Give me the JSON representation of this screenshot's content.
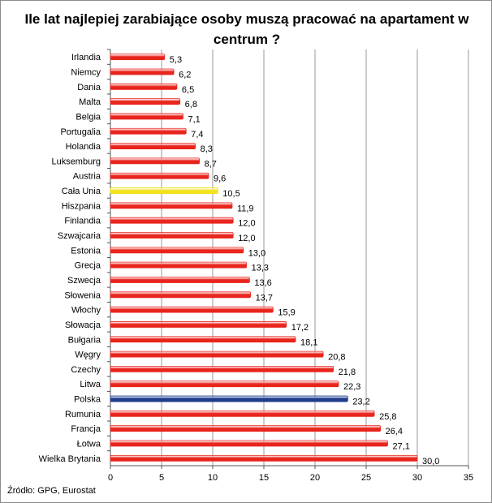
{
  "chart_data": {
    "type": "bar",
    "orientation": "horizontal",
    "title": "Ile lat najlepiej zarabiające osoby muszą pracować na apartament w centrum ?",
    "source_note": "Źródło: GPG, Eurostat",
    "categories": [
      "Irlandia",
      "Niemcy",
      "Dania",
      "Malta",
      "Belgia",
      "Portugalia",
      "Holandia",
      "Luksemburg",
      "Austria",
      "Cała Unia",
      "Hiszpania",
      "Finlandia",
      "Szwajcaria",
      "Estonia",
      "Grecja",
      "Szwecja",
      "Słowenia",
      "Włochy",
      "Słowacja",
      "Bułgaria",
      "Węgry",
      "Czechy",
      "Litwa",
      "Polska",
      "Rumunia",
      "Francja",
      "Łotwa",
      "Wielka Brytania"
    ],
    "values": [
      5.3,
      6.2,
      6.5,
      6.8,
      7.1,
      7.4,
      8.3,
      8.7,
      9.6,
      10.5,
      11.9,
      12.0,
      12.0,
      13.0,
      13.3,
      13.6,
      13.7,
      15.9,
      17.2,
      18.1,
      20.8,
      21.8,
      22.3,
      23.2,
      25.8,
      26.4,
      27.1,
      30.0
    ],
    "value_labels": [
      "5,3",
      "6,2",
      "6,5",
      "6,8",
      "7,1",
      "7,4",
      "8,3",
      "8,7",
      "9,6",
      "10,5",
      "11,9",
      "12,0",
      "12,0",
      "13,0",
      "13,3",
      "13,6",
      "13,7",
      "15,9",
      "17,2",
      "18,1",
      "20,8",
      "21,8",
      "22,3",
      "23,2",
      "25,8",
      "26,4",
      "27,1",
      "30,0"
    ],
    "xlim": [
      0,
      35
    ],
    "x_ticks": [
      0,
      5,
      10,
      15,
      20,
      25,
      30,
      35
    ],
    "grid": true,
    "colors": {
      "default": "#e8251d",
      "highlight_eu": "#f2e21c",
      "highlight_pl": "#1f3d8a",
      "grid": "#9a9a9a"
    },
    "highlights": {
      "Cała Unia": "highlight_eu",
      "Polska": "highlight_pl"
    }
  }
}
